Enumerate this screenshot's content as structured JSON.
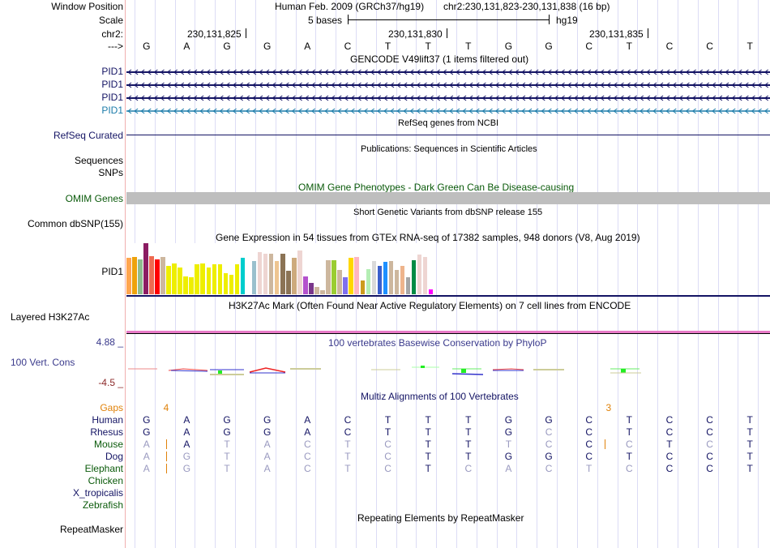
{
  "header": {
    "window_position_label": "Window Position",
    "scale_label": "Scale",
    "chrom_label": "chr2:",
    "strand_label": "--->",
    "assembly_title": "Human Feb. 2009 (GRCh37/hg19)",
    "position": "chr2:230,131,823-230,131,838 (16 bp)",
    "scale_text": "5 bases",
    "scale_db": "hg19",
    "ruler_ticks": [
      "230,131,825",
      "230,131,830",
      "230,131,835"
    ],
    "sequence": [
      "G",
      "A",
      "G",
      "G",
      "A",
      "C",
      "T",
      "T",
      "T",
      "G",
      "G",
      "C",
      "T",
      "C",
      "C",
      "T"
    ]
  },
  "tracks": {
    "gencode": {
      "title": "GENCODE V49lift37 (1 items filtered out)",
      "items": [
        {
          "label": "PID1",
          "color": "#141464"
        },
        {
          "label": "PID1",
          "color": "#141464"
        },
        {
          "label": "PID1",
          "color": "#141464"
        },
        {
          "label": "PID1",
          "color": "#1c7caa"
        }
      ]
    },
    "refseq": {
      "title": "RefSeq genes from NCBI",
      "label": "RefSeq Curated",
      "color": "#141464"
    },
    "publications": {
      "title": "Publications: Sequences in Scientific Articles",
      "labels": [
        "Sequences",
        "SNPs"
      ]
    },
    "omim": {
      "title": "OMIM Gene Phenotypes - Dark Green Can Be Disease-causing",
      "label": "OMIM Genes",
      "color": "#0a5a0a",
      "bar_color": "#bebebe"
    },
    "dbsnp": {
      "title": "Short Genetic Variants from dbSNP release 155",
      "label": "Common dbSNP(155)"
    },
    "gtex": {
      "title": "Gene Expression in 54 tissues from GTEx RNA-seq of 17382 samples, 948 donors (V8, Aug 2019)",
      "label": "PID1",
      "bars": [
        {
          "value": 0.71,
          "color": "#ffa54f"
        },
        {
          "value": 0.73,
          "color": "#eea20b"
        },
        {
          "value": 0.68,
          "color": "#8fbc8f"
        },
        {
          "value": 1.0,
          "color": "#8b1c62"
        },
        {
          "value": 0.75,
          "color": "#ee6a50"
        },
        {
          "value": 0.68,
          "color": "#ff0000"
        },
        {
          "value": 0.73,
          "color": "#cdb79e"
        },
        {
          "value": 0.56,
          "color": "#eeee00"
        },
        {
          "value": 0.61,
          "color": "#eeee00"
        },
        {
          "value": 0.52,
          "color": "#eeee00"
        },
        {
          "value": 0.35,
          "color": "#eeee00"
        },
        {
          "value": 0.33,
          "color": "#eeee00"
        },
        {
          "value": 0.58,
          "color": "#eeee00"
        },
        {
          "value": 0.61,
          "color": "#eeee00"
        },
        {
          "value": 0.52,
          "color": "#eeee00"
        },
        {
          "value": 0.58,
          "color": "#eeee00"
        },
        {
          "value": 0.58,
          "color": "#eeee00"
        },
        {
          "value": 0.42,
          "color": "#eeee00"
        },
        {
          "value": 0.38,
          "color": "#eeee00"
        },
        {
          "value": 0.58,
          "color": "#eeee00"
        },
        {
          "value": 0.71,
          "color": "#00cdcd"
        },
        {
          "value": 0.0,
          "color": "#ffffff"
        },
        {
          "value": 0.65,
          "color": "#9ac0cd"
        },
        {
          "value": 0.83,
          "color": "#eed5d2"
        },
        {
          "value": 0.79,
          "color": "#eed5d2"
        },
        {
          "value": 0.79,
          "color": "#cdb79e"
        },
        {
          "value": 0.65,
          "color": "#eec591"
        },
        {
          "value": 0.79,
          "color": "#8b7355"
        },
        {
          "value": 0.46,
          "color": "#8b7355"
        },
        {
          "value": 0.71,
          "color": "#cdaa7d"
        },
        {
          "value": 0.85,
          "color": "#eed5d2"
        },
        {
          "value": 0.35,
          "color": "#b452cd"
        },
        {
          "value": 0.22,
          "color": "#7a378b"
        },
        {
          "value": 0.15,
          "color": "#cdb79e"
        },
        {
          "value": 0.08,
          "color": "#cdb79e"
        },
        {
          "value": 0.67,
          "color": "#cdb79e"
        },
        {
          "value": 0.67,
          "color": "#9acd32"
        },
        {
          "value": 0.48,
          "color": "#cdb79e"
        },
        {
          "value": 0.33,
          "color": "#7f6fee"
        },
        {
          "value": 0.71,
          "color": "#ffd700"
        },
        {
          "value": 0.73,
          "color": "#ffb6c1"
        },
        {
          "value": 0.27,
          "color": "#cd9b1d"
        },
        {
          "value": 0.5,
          "color": "#b4eeb4"
        },
        {
          "value": 0.65,
          "color": "#d9d9d9"
        },
        {
          "value": 0.56,
          "color": "#3a5fcd"
        },
        {
          "value": 0.63,
          "color": "#1e90ff"
        },
        {
          "value": 0.65,
          "color": "#cdb79e"
        },
        {
          "value": 0.48,
          "color": "#cdb79e"
        },
        {
          "value": 0.56,
          "color": "#eeb48c"
        },
        {
          "value": 0.33,
          "color": "#a6a6a6"
        },
        {
          "value": 0.67,
          "color": "#008b45"
        },
        {
          "value": 0.77,
          "color": "#eed5d2"
        },
        {
          "value": 0.73,
          "color": "#eed5d2"
        },
        {
          "value": 0.1,
          "color": "#ff00ff"
        }
      ]
    },
    "h3k27ac": {
      "title": "H3K27Ac Mark (Often Found Near Active Regulatory Elements) on 7 cell lines from ENCODE",
      "label": "Layered H3K27Ac",
      "line_color": "#e87ac8"
    },
    "phylop": {
      "title": "100 vertebrates Basewise Conservation by PhyloP",
      "label": "100 Vert. Cons",
      "ymax_label": "4.88 _",
      "ymin_label": "-4.5 _"
    },
    "multiz": {
      "title": "Multiz Alignments of 100 Vertebrates",
      "gaps_label": "Gaps",
      "gaps": [
        {
          "after_base": 1,
          "count": "4"
        },
        {
          "after_base": 12,
          "count": "3"
        }
      ],
      "species": [
        {
          "name": "Human",
          "color": "#141464",
          "seq": "GAGGACTTTGGCTCCT",
          "dim": "0000000000000000"
        },
        {
          "name": "Rhesus",
          "color": "#141464",
          "seq": "GAGGACTTTGCCTCCT",
          "dim": "0000000000100000"
        },
        {
          "name": "Mouse",
          "color": "#0a5a0a",
          "seq": "AATACTCTTTCCCTCT",
          "dim": "1011111001101010"
        },
        {
          "name": "Dog",
          "color": "#141464",
          "seq": "AGTACTCTTGGCTCCT",
          "dim": "1111111000000000"
        },
        {
          "name": "Elephant",
          "color": "#0a5a0a",
          "seq": "AGTACTCTCACTCCCT",
          "dim": "1111111011111000"
        },
        {
          "name": "Chicken",
          "color": "#0a5a0a",
          "seq": "",
          "dim": ""
        },
        {
          "name": "X_tropicalis",
          "color": "#141464",
          "seq": "",
          "dim": ""
        },
        {
          "name": "Zebrafish",
          "color": "#0a5a0a",
          "seq": "",
          "dim": ""
        }
      ]
    },
    "repeatmasker": {
      "title": "Repeating Elements by RepeatMasker",
      "label": "RepeatMasker"
    }
  }
}
